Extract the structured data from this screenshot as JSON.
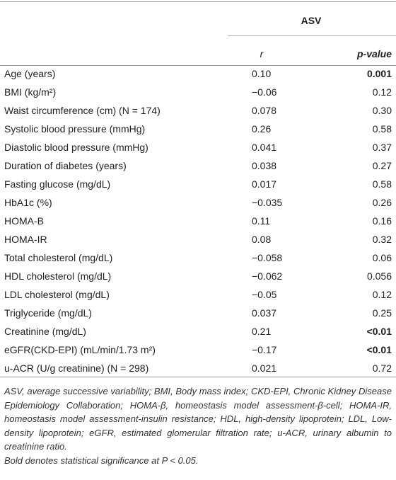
{
  "table": {
    "group_header": "ASV",
    "columns": [
      "r",
      "p-value"
    ],
    "rows": [
      {
        "label": "Age (years)",
        "r": "0.10",
        "p": "0.001",
        "significant": true
      },
      {
        "label": "BMI (kg/m²)",
        "r": "−0.06",
        "p": "0.12",
        "significant": false
      },
      {
        "label": "Waist circumference (cm) (N = 174)",
        "r": "0.078",
        "p": "0.30",
        "significant": false
      },
      {
        "label": "Systolic blood pressure (mmHg)",
        "r": "0.26",
        "p": "0.58",
        "significant": false
      },
      {
        "label": "Diastolic blood pressure (mmHg)",
        "r": "0.041",
        "p": "0.37",
        "significant": false
      },
      {
        "label": "Duration of diabetes (years)",
        "r": "0.038",
        "p": "0.27",
        "significant": false
      },
      {
        "label": "Fasting glucose (mg/dL)",
        "r": "0.017",
        "p": "0.58",
        "significant": false
      },
      {
        "label": "HbA1c (%)",
        "r": "−0.035",
        "p": "0.26",
        "significant": false
      },
      {
        "label": "HOMA-B",
        "r": "0.11",
        "p": "0.16",
        "significant": false
      },
      {
        "label": "HOMA-IR",
        "r": "0.08",
        "p": "0.32",
        "significant": false
      },
      {
        "label": "Total cholesterol (mg/dL)",
        "r": "−0.058",
        "p": "0.06",
        "significant": false
      },
      {
        "label": "HDL cholesterol (mg/dL)",
        "r": "−0.062",
        "p": "0.056",
        "significant": false
      },
      {
        "label": "LDL cholesterol (mg/dL)",
        "r": "−0.05",
        "p": "0.12",
        "significant": false
      },
      {
        "label": "Triglyceride (mg/dL)",
        "r": "0.037",
        "p": "0.25",
        "significant": false
      },
      {
        "label": "Creatinine (mg/dL)",
        "r": "0.21",
        "p": "<0.01",
        "significant": true
      },
      {
        "label": "eGFR(CKD-EPI) (mL/min/1.73 m²)",
        "r": "−0.17",
        "p": "<0.01",
        "significant": true
      },
      {
        "label": "u-ACR (U/g creatinine) (N = 298)",
        "r": "0.021",
        "p": "0.72",
        "significant": false
      }
    ]
  },
  "footnote": [
    "ASV, average successive variability; BMI, Body mass index; CKD-EPI, Chronic Kidney Disease Epidemiology Collaboration; HOMA-β, homeostasis model assessment-β-cell; HOMA-IR, homeostasis model assessment-insulin resistance; HDL, high-density lipoprotein; LDL, Low-density lipoprotein; eGFR, estimated glomerular filtration rate; u-ACR, urinary albumin to creatinine ratio.",
    "Bold denotes statistical significance at P < 0.05."
  ]
}
